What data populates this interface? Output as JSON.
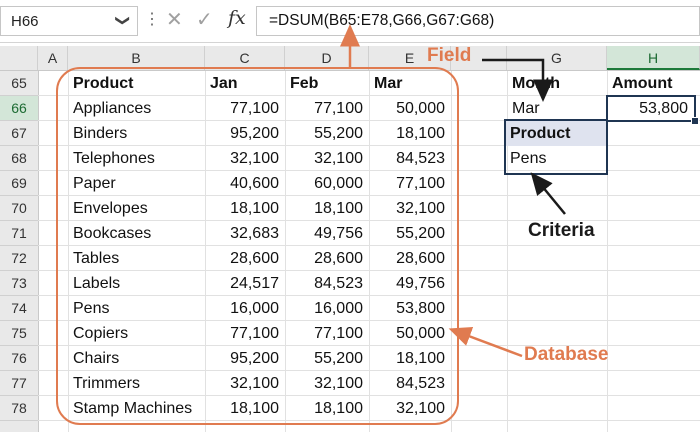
{
  "formula_bar": {
    "name_box": "H66",
    "name_box_arrow": "❯",
    "separator": "⋮",
    "cancel_glyph": "✕",
    "enter_glyph": "✓",
    "fx_label": "fx",
    "formula": "=DSUM(B65:E78,G66,G67:G68)"
  },
  "columns": [
    "A",
    "B",
    "C",
    "D",
    "E",
    "G",
    "H"
  ],
  "selected_column": "H",
  "rows": [
    "65",
    "66",
    "67",
    "68",
    "69",
    "70",
    "71",
    "72",
    "73",
    "74",
    "75",
    "76",
    "77",
    "78"
  ],
  "selected_row": "66",
  "database": {
    "headers": [
      "Product",
      "Jan",
      "Feb",
      "Mar"
    ],
    "rows": [
      [
        "Appliances",
        "77,100",
        "77,100",
        "50,000"
      ],
      [
        "Binders",
        "95,200",
        "55,200",
        "18,100"
      ],
      [
        "Telephones",
        "32,100",
        "32,100",
        "84,523"
      ],
      [
        "Paper",
        "40,600",
        "60,000",
        "77,100"
      ],
      [
        "Envelopes",
        "18,100",
        "18,100",
        "32,100"
      ],
      [
        "Bookcases",
        "32,683",
        "49,756",
        "55,200"
      ],
      [
        "Tables",
        "28,600",
        "28,600",
        "28,600"
      ],
      [
        "Labels",
        "24,517",
        "84,523",
        "49,756"
      ],
      [
        "Pens",
        "16,000",
        "16,000",
        "53,800"
      ],
      [
        "Copiers",
        "77,100",
        "77,100",
        "50,000"
      ],
      [
        "Chairs",
        "95,200",
        "55,200",
        "18,100"
      ],
      [
        "Trimmers",
        "32,100",
        "32,100",
        "84,523"
      ],
      [
        "Stamp Machines",
        "18,100",
        "18,100",
        "32,100"
      ]
    ]
  },
  "lookup": {
    "month_header": "Month",
    "amount_header": "Amount",
    "month_value": "Mar",
    "amount_value": "53,800",
    "criteria_header": "Product",
    "criteria_value": "Pens"
  },
  "annotations": {
    "field": "Field",
    "criteria": "Criteria",
    "database": "Database"
  },
  "colors": {
    "annotation_orange": "#e07b50",
    "criteria_border": "#1f3552",
    "criteria_header_fill": "#dfe3ef",
    "selection_green": "#1d7a3a"
  }
}
